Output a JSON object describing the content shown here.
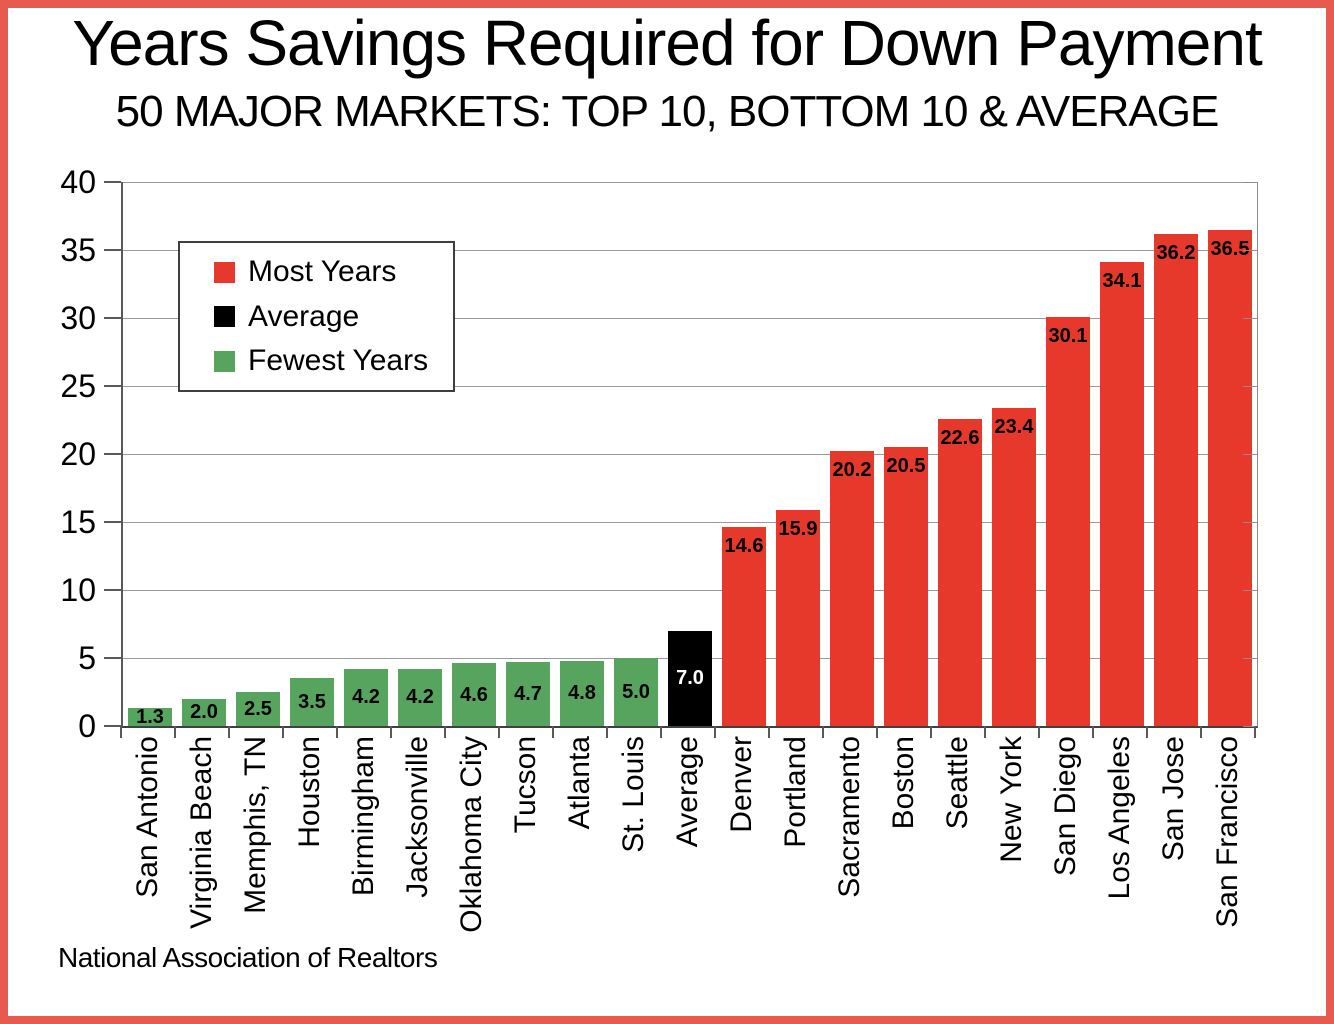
{
  "title": "Years Savings Required for Down Payment",
  "subtitle": "50 MAJOR MARKETS: TOP 10, BOTTOM 10 & AVERAGE",
  "source": "National Association of Realtors",
  "legend": [
    {
      "label": "Most Years",
      "group": "most",
      "color": "#E6392B"
    },
    {
      "label": "Average",
      "group": "average",
      "color": "#000000"
    },
    {
      "label": "Fewest Years",
      "group": "fewest",
      "color": "#57A45F"
    }
  ],
  "colors": {
    "most": "#E6392B",
    "average": "#000000",
    "fewest": "#57A45F",
    "frame_border": "#E85A50",
    "gridline": "#9A9A9A",
    "axis": "#595959",
    "value_label_on_dark": "#FFFFFF",
    "value_label": "#000000"
  },
  "chart_data": {
    "type": "bar",
    "title": "Years Savings Required for Down Payment",
    "subtitle": "50 MAJOR MARKETS: TOP 10, BOTTOM 10 & AVERAGE",
    "xlabel": "",
    "ylabel": "",
    "ylim": [
      0,
      40
    ],
    "ytick_interval": 5,
    "grid": true,
    "legend_position": "upper-left",
    "bars": [
      {
        "category": "San Antonio",
        "value": 1.3,
        "group": "fewest"
      },
      {
        "category": "Virginia Beach",
        "value": 2.0,
        "group": "fewest"
      },
      {
        "category": "Memphis, TN",
        "value": 2.5,
        "group": "fewest"
      },
      {
        "category": "Houston",
        "value": 3.5,
        "group": "fewest"
      },
      {
        "category": "Birmingham",
        "value": 4.2,
        "group": "fewest"
      },
      {
        "category": "Jacksonville",
        "value": 4.2,
        "group": "fewest"
      },
      {
        "category": "Oklahoma City",
        "value": 4.6,
        "group": "fewest"
      },
      {
        "category": "Tucson",
        "value": 4.7,
        "group": "fewest"
      },
      {
        "category": "Atlanta",
        "value": 4.8,
        "group": "fewest"
      },
      {
        "category": "St. Louis",
        "value": 5.0,
        "group": "fewest"
      },
      {
        "category": "Average",
        "value": 7.0,
        "group": "average"
      },
      {
        "category": "Denver",
        "value": 14.6,
        "group": "most"
      },
      {
        "category": "Portland",
        "value": 15.9,
        "group": "most"
      },
      {
        "category": "Sacramento",
        "value": 20.2,
        "group": "most"
      },
      {
        "category": "Boston",
        "value": 20.5,
        "group": "most"
      },
      {
        "category": "Seattle",
        "value": 22.6,
        "group": "most"
      },
      {
        "category": "New York",
        "value": 23.4,
        "group": "most"
      },
      {
        "category": "San Diego",
        "value": 30.1,
        "group": "most"
      },
      {
        "category": "Los Angeles",
        "value": 34.1,
        "group": "most"
      },
      {
        "category": "San Jose",
        "value": 36.2,
        "group": "most"
      },
      {
        "category": "San Francisco",
        "value": 36.5,
        "group": "most"
      }
    ]
  }
}
